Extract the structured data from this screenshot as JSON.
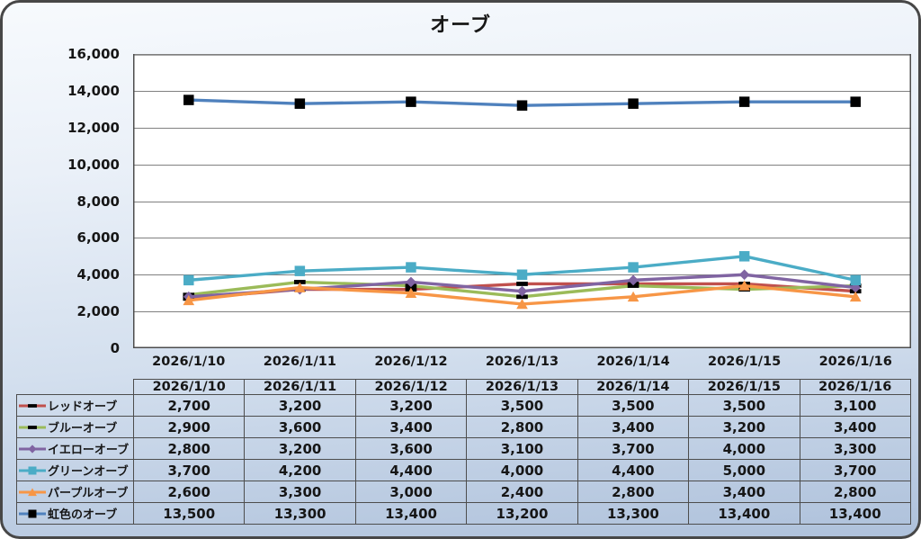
{
  "title": "オーブ",
  "chart_data": {
    "type": "line",
    "title": "オーブ",
    "categories": [
      "2026/1/10",
      "2026/1/11",
      "2026/1/12",
      "2026/1/13",
      "2026/1/14",
      "2026/1/15",
      "2026/1/16"
    ],
    "series": [
      {
        "name": "レッドオーブ",
        "values": [
          2700,
          3200,
          3200,
          3500,
          3500,
          3500,
          3100
        ],
        "line_color": "#C0504D",
        "marker": "dash",
        "marker_color": "#000000"
      },
      {
        "name": "ブルーオーブ",
        "values": [
          2900,
          3600,
          3400,
          2800,
          3400,
          3200,
          3400
        ],
        "line_color": "#9BBB59",
        "marker": "dash",
        "marker_color": "#000000"
      },
      {
        "name": "イエローオーブ",
        "values": [
          2800,
          3200,
          3600,
          3100,
          3700,
          4000,
          3300
        ],
        "line_color": "#8064A2",
        "marker": "diamond",
        "marker_color": "#8064A2"
      },
      {
        "name": "グリーンオーブ",
        "values": [
          3700,
          4200,
          4400,
          4000,
          4400,
          5000,
          3700
        ],
        "line_color": "#4BACC6",
        "marker": "square",
        "marker_color": "#4BACC6"
      },
      {
        "name": "パープルオーブ",
        "values": [
          2600,
          3300,
          3000,
          2400,
          2800,
          3400,
          2800
        ],
        "line_color": "#F79646",
        "marker": "triangle",
        "marker_color": "#F79646"
      },
      {
        "name": "虹色のオーブ",
        "values": [
          13500,
          13300,
          13400,
          13200,
          13300,
          13400,
          13400
        ],
        "line_color": "#4F81BD",
        "marker": "square",
        "marker_color": "#000000"
      }
    ],
    "ylim": [
      0,
      16000
    ],
    "ytick_step": 2000,
    "ytick_labels": [
      "0",
      "2,000",
      "4,000",
      "6,000",
      "8,000",
      "10,000",
      "12,000",
      "14,000",
      "16,000"
    ],
    "grid": true,
    "legend_position": "table-left"
  },
  "colors": {
    "plot_bg": "#ffffff",
    "grid_line": "#808080",
    "plot_border": "#4d4d4d",
    "table_border": "#4d4d4d",
    "text": "#161616"
  }
}
